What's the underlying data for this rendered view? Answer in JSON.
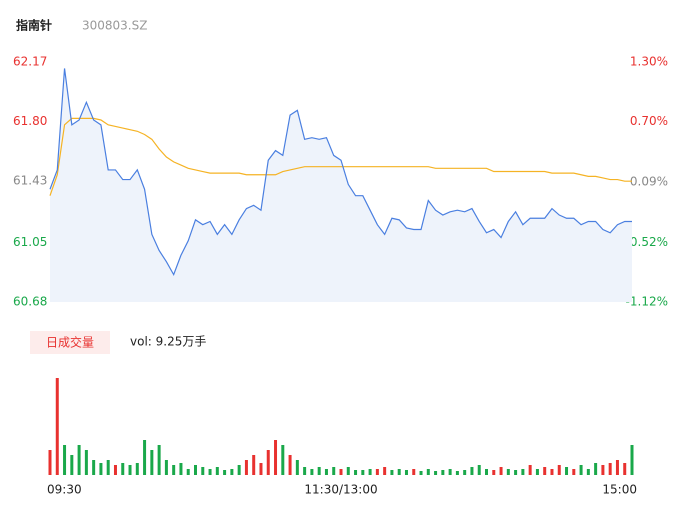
{
  "chart_data": [
    {
      "type": "line",
      "title": "指南针",
      "subtitle": "300803.SZ",
      "x": [
        0,
        3,
        6,
        9,
        12,
        15,
        18,
        21,
        24,
        27,
        30,
        33,
        36,
        39,
        42,
        45,
        48,
        51,
        54,
        57,
        60,
        63,
        66,
        69,
        72,
        75,
        78,
        81,
        84,
        87,
        90,
        93,
        96,
        99,
        102,
        105,
        108,
        111,
        114,
        117,
        120,
        123,
        126,
        129,
        132,
        135,
        138,
        141,
        144,
        147,
        150,
        153,
        156,
        159,
        162,
        165,
        168,
        171,
        174,
        177,
        180,
        183,
        186,
        189,
        192,
        195,
        198,
        201,
        204,
        207,
        210,
        213,
        216,
        219,
        222,
        225,
        228,
        231,
        234,
        237,
        240
      ],
      "xlim": [
        0,
        240
      ],
      "series": [
        {
          "name": "price",
          "color": "#4a7fe0",
          "values": [
            61.38,
            61.5,
            62.13,
            61.78,
            61.81,
            61.92,
            61.81,
            61.78,
            61.5,
            61.5,
            61.44,
            61.44,
            61.5,
            61.38,
            61.1,
            61.0,
            60.93,
            60.85,
            60.97,
            61.06,
            61.19,
            61.16,
            61.18,
            61.1,
            61.16,
            61.1,
            61.19,
            61.26,
            61.28,
            61.25,
            61.56,
            61.62,
            61.59,
            61.84,
            61.87,
            61.69,
            61.7,
            61.69,
            61.7,
            61.59,
            61.56,
            61.41,
            61.34,
            61.34,
            61.25,
            61.16,
            61.1,
            61.2,
            61.19,
            61.14,
            61.13,
            61.13,
            61.31,
            61.25,
            61.22,
            61.24,
            61.25,
            61.24,
            61.26,
            61.18,
            61.11,
            61.13,
            61.08,
            61.18,
            61.24,
            61.16,
            61.2,
            61.2,
            61.2,
            61.26,
            61.22,
            61.2,
            61.2,
            61.16,
            61.18,
            61.18,
            61.13,
            61.11,
            61.16,
            61.18,
            61.18
          ]
        },
        {
          "name": "average",
          "color": "#f5b324",
          "values": [
            61.34,
            61.47,
            61.78,
            61.82,
            61.82,
            61.82,
            61.82,
            61.81,
            61.78,
            61.77,
            61.76,
            61.75,
            61.74,
            61.72,
            61.69,
            61.63,
            61.58,
            61.55,
            61.53,
            61.51,
            61.5,
            61.49,
            61.48,
            61.48,
            61.48,
            61.48,
            61.48,
            61.47,
            61.47,
            61.47,
            61.47,
            61.47,
            61.49,
            61.5,
            61.51,
            61.52,
            61.52,
            61.52,
            61.52,
            61.52,
            61.52,
            61.52,
            61.52,
            61.52,
            61.52,
            61.52,
            61.52,
            61.52,
            61.52,
            61.52,
            61.52,
            61.52,
            61.52,
            61.51,
            61.51,
            61.51,
            61.51,
            61.51,
            61.51,
            61.51,
            61.51,
            61.49,
            61.49,
            61.49,
            61.49,
            61.49,
            61.49,
            61.49,
            61.49,
            61.48,
            61.48,
            61.48,
            61.48,
            61.47,
            61.46,
            61.46,
            61.45,
            61.44,
            61.44,
            61.43,
            61.43
          ]
        }
      ],
      "area_color": "#eef3fb",
      "ylim": [
        60.68,
        62.17
      ],
      "yticks": [
        60.68,
        61.05,
        61.43,
        {
          "value": 61.8,
          "label": "61.80"
        },
        62.17
      ],
      "y2lim": [
        -1.12,
        1.3
      ],
      "y2ticks": [
        {
          "value": -1.12,
          "label": "-1.12%"
        },
        {
          "value": -0.52,
          "label": "-0.52%"
        },
        {
          "value": 0.09,
          "label": "0.09%"
        },
        {
          "value": 0.7,
          "label": "0.70%"
        },
        {
          "value": 1.3,
          "label": "1.30%"
        }
      ],
      "tick_colors": [
        "#1aa84a",
        "#1aa84a",
        "#888888",
        "#e8312f",
        "#e8312f"
      ]
    },
    {
      "type": "bar",
      "label": "日成交量",
      "annotation": "vol: 9.25万手",
      "x": [
        0,
        3,
        6,
        9,
        12,
        15,
        18,
        21,
        24,
        27,
        30,
        33,
        36,
        39,
        42,
        45,
        48,
        51,
        54,
        57,
        60,
        63,
        66,
        69,
        72,
        75,
        78,
        81,
        84,
        87,
        90,
        93,
        96,
        99,
        102,
        105,
        108,
        111,
        114,
        117,
        120,
        123,
        126,
        129,
        132,
        135,
        138,
        141,
        144,
        147,
        150,
        153,
        156,
        159,
        162,
        165,
        168,
        171,
        174,
        177,
        180,
        183,
        186,
        189,
        192,
        195,
        198,
        201,
        204,
        207,
        210,
        213,
        216,
        219,
        222,
        225,
        228,
        231,
        234,
        237,
        240
      ],
      "xlim": [
        0,
        240
      ],
      "xticks": [
        {
          "value": 0,
          "label": "09:30"
        },
        {
          "value": 120,
          "label": "11:30/13:00"
        },
        {
          "value": 240,
          "label": "15:00"
        }
      ],
      "ylim": [
        0,
        4000
      ],
      "values": [
        1000,
        3880,
        1200,
        800,
        1200,
        1000,
        600,
        480,
        600,
        400,
        480,
        400,
        480,
        1400,
        1000,
        1200,
        600,
        400,
        480,
        240,
        400,
        320,
        240,
        320,
        200,
        240,
        400,
        600,
        800,
        480,
        1000,
        1400,
        1200,
        800,
        600,
        320,
        240,
        320,
        240,
        320,
        240,
        320,
        200,
        200,
        240,
        240,
        320,
        200,
        240,
        200,
        240,
        160,
        240,
        160,
        200,
        240,
        160,
        200,
        320,
        400,
        240,
        200,
        320,
        240,
        200,
        240,
        400,
        240,
        320,
        240,
        400,
        320,
        240,
        400,
        240,
        480,
        400,
        480,
        600,
        480,
        1200
      ],
      "colors": [
        "#e8312f",
        "#e8312f",
        "#1aa84a",
        "#1aa84a",
        "#1aa84a",
        "#1aa84a",
        "#1aa84a",
        "#1aa84a",
        "#1aa84a",
        "#e8312f",
        "#1aa84a",
        "#1aa84a",
        "#1aa84a",
        "#1aa84a",
        "#1aa84a",
        "#1aa84a",
        "#1aa84a",
        "#1aa84a",
        "#1aa84a",
        "#1aa84a",
        "#1aa84a",
        "#1aa84a",
        "#1aa84a",
        "#1aa84a",
        "#1aa84a",
        "#1aa84a",
        "#1aa84a",
        "#e8312f",
        "#e8312f",
        "#e8312f",
        "#e8312f",
        "#e8312f",
        "#1aa84a",
        "#e8312f",
        "#1aa84a",
        "#1aa84a",
        "#1aa84a",
        "#1aa84a",
        "#1aa84a",
        "#1aa84a",
        "#e8312f",
        "#1aa84a",
        "#1aa84a",
        "#1aa84a",
        "#1aa84a",
        "#e8312f",
        "#e8312f",
        "#1aa84a",
        "#1aa84a",
        "#1aa84a",
        "#e8312f",
        "#1aa84a",
        "#1aa84a",
        "#1aa84a",
        "#1aa84a",
        "#1aa84a",
        "#1aa84a",
        "#1aa84a",
        "#1aa84a",
        "#1aa84a",
        "#1aa84a",
        "#e8312f",
        "#e8312f",
        "#1aa84a",
        "#1aa84a",
        "#1aa84a",
        "#e8312f",
        "#1aa84a",
        "#e8312f",
        "#e8312f",
        "#e8312f",
        "#1aa84a",
        "#e8312f",
        "#1aa84a",
        "#1aa84a",
        "#1aa84a",
        "#e8312f",
        "#e8312f",
        "#e8312f",
        "#e8312f",
        "#1aa84a"
      ]
    }
  ]
}
